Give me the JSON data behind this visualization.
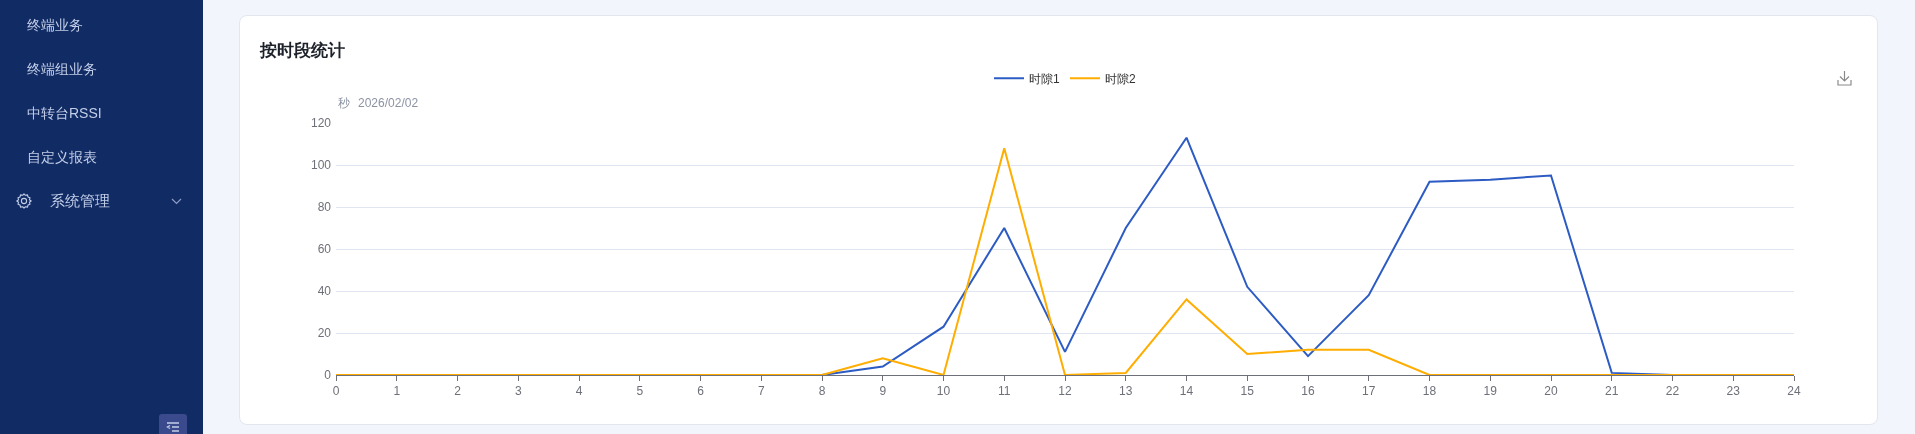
{
  "chart_data": {
    "type": "line",
    "title": "按时段统计",
    "ylabel": "秒",
    "annotations": [
      "2026/02/02",
      "终端业务",
      "终端组业务",
      "中转台RSSI",
      "自定义报表",
      "系统管理"
    ],
    "x": [
      0,
      1,
      2,
      3,
      4,
      5,
      6,
      7,
      8,
      9,
      10,
      11,
      12,
      13,
      14,
      15,
      16,
      17,
      18,
      19,
      20,
      21,
      22,
      23,
      24
    ],
    "series": [
      {
        "name": "时隙1",
        "color": "#2d5bc4",
        "values": [
          null,
          null,
          null,
          null,
          null,
          null,
          null,
          null,
          0,
          4,
          23,
          70,
          11,
          70,
          113,
          42,
          9,
          38,
          92,
          93,
          95,
          1,
          0,
          null,
          null
        ]
      },
      {
        "name": "时隙2",
        "color": "#ffad00",
        "values": [
          0,
          0,
          0,
          0,
          0,
          0,
          0,
          0,
          0,
          8,
          0,
          108,
          0,
          1,
          36,
          10,
          12,
          12,
          0,
          0,
          0,
          0,
          0,
          0,
          0
        ]
      }
    ],
    "xlim": [
      0,
      24
    ],
    "xticks": [
      0,
      1,
      2,
      3,
      4,
      5,
      6,
      7,
      8,
      9,
      10,
      11,
      12,
      13,
      14,
      15,
      16,
      17,
      18,
      19,
      20,
      21,
      22,
      23,
      24
    ],
    "ylim": [
      0,
      120
    ],
    "yticks": [
      0,
      20,
      40,
      60,
      80,
      100,
      120
    ],
    "grid": "y",
    "legend": "top",
    "line_style": "solid"
  }
}
